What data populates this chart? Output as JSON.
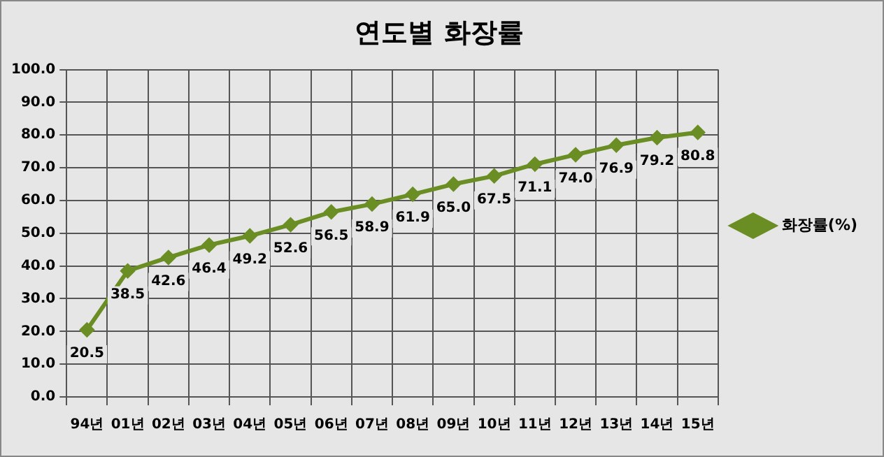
{
  "chart_data": {
    "type": "line",
    "title": "연도별 화장률",
    "categories": [
      "94년",
      "01년",
      "02년",
      "03년",
      "04년",
      "05년",
      "06년",
      "07년",
      "08년",
      "09년",
      "10년",
      "11년",
      "12년",
      "13년",
      "14년",
      "15년"
    ],
    "series": [
      {
        "name": "화장률(%)",
        "color": "#6a8e23",
        "values": [
          20.5,
          38.5,
          42.6,
          46.4,
          49.2,
          52.6,
          56.5,
          58.9,
          61.9,
          65.0,
          67.5,
          71.1,
          74.0,
          76.9,
          79.2,
          80.8
        ],
        "value_labels": [
          "20.5",
          "38.5",
          "42.6",
          "46.4",
          "49.2",
          "52.6",
          "56.5",
          "58.9",
          "61.9",
          "65.0",
          "67.5",
          "71.1",
          "74.0",
          "76.9",
          "79.2",
          "80.8"
        ]
      }
    ],
    "ylim": [
      0,
      100
    ],
    "yticks": [
      {
        "value": 0,
        "label": "0.0"
      },
      {
        "value": 10,
        "label": "10.0"
      },
      {
        "value": 20,
        "label": "20.0"
      },
      {
        "value": 30,
        "label": "30.0"
      },
      {
        "value": 40,
        "label": "40.0"
      },
      {
        "value": 50,
        "label": "50.0"
      },
      {
        "value": 60,
        "label": "60.0"
      },
      {
        "value": 70,
        "label": "70.0"
      },
      {
        "value": 80,
        "label": "80.0"
      },
      {
        "value": 90,
        "label": "90.0"
      },
      {
        "value": 100,
        "label": "100.0"
      }
    ],
    "grid": true,
    "legend": "right",
    "marker": "diamond",
    "line_style": "solid"
  }
}
